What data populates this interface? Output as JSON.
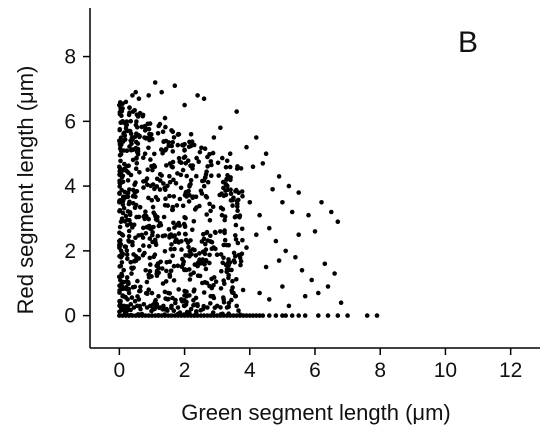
{
  "chart_data": {
    "type": "scatter",
    "panel_label": "B",
    "xlabel": "Green segment length (μm)",
    "ylabel": "Red segment length (μm)",
    "xlim": [
      -0.9,
      12.9
    ],
    "ylim": [
      -1.0,
      9.5
    ],
    "xticks": [
      0,
      2,
      4,
      6,
      8,
      10,
      12
    ],
    "yticks": [
      0,
      2,
      4,
      6,
      8
    ],
    "grid": false,
    "legend": "none",
    "marker_color": "#000000",
    "series": [
      {
        "points": [
          [
            0.0,
            6.5
          ],
          [
            0.1,
            6.4
          ],
          [
            0.2,
            6.6
          ],
          [
            0.5,
            6.9
          ],
          [
            0.6,
            6.7
          ],
          [
            0.4,
            6.8
          ],
          [
            0.9,
            6.8
          ],
          [
            1.1,
            7.2
          ],
          [
            1.7,
            7.1
          ],
          [
            2.4,
            6.8
          ],
          [
            2.6,
            6.7
          ],
          [
            3.6,
            6.3
          ],
          [
            1.3,
            6.9
          ],
          [
            0.1,
            6.0
          ],
          [
            0.3,
            6.2
          ],
          [
            2.0,
            6.5
          ],
          [
            0.2,
            5.9
          ],
          [
            0.8,
            5.8
          ],
          [
            1.4,
            6.1
          ],
          [
            2.2,
            5.6
          ],
          [
            3.1,
            5.8
          ],
          [
            2.9,
            5.5
          ],
          [
            3.9,
            5.2
          ],
          [
            4.2,
            5.5
          ],
          [
            4.5,
            5.0
          ],
          [
            3.4,
            5.0
          ],
          [
            2.7,
            4.9
          ],
          [
            4.1,
            4.6
          ],
          [
            4.4,
            4.7
          ],
          [
            4.9,
            4.3
          ],
          [
            5.2,
            4.0
          ],
          [
            5.5,
            3.8
          ],
          [
            4.7,
            3.9
          ],
          [
            5.0,
            3.5
          ],
          [
            5.3,
            3.2
          ],
          [
            5.8,
            3.1
          ],
          [
            6.0,
            2.6
          ],
          [
            6.2,
            3.5
          ],
          [
            6.5,
            3.2
          ],
          [
            6.7,
            2.9
          ],
          [
            4.3,
            3.1
          ],
          [
            4.6,
            2.7
          ],
          [
            4.8,
            2.3
          ],
          [
            5.1,
            2.0
          ],
          [
            5.4,
            1.8
          ],
          [
            5.6,
            1.4
          ],
          [
            5.9,
            1.1
          ],
          [
            6.3,
            1.6
          ],
          [
            6.6,
            1.3
          ],
          [
            6.1,
            0.7
          ],
          [
            6.8,
            0.4
          ],
          [
            6.4,
            0.9
          ],
          [
            5.7,
            0.6
          ],
          [
            5.0,
            0.9
          ],
          [
            4.5,
            1.5
          ],
          [
            4.9,
            1.7
          ],
          [
            4.2,
            2.5
          ],
          [
            4.0,
            3.5
          ],
          [
            3.9,
            2.1
          ],
          [
            4.3,
            0.7
          ],
          [
            4.6,
            0.5
          ],
          [
            5.2,
            0.3
          ],
          [
            5.5,
            2.5
          ],
          [
            0.0,
            0.0
          ],
          [
            0.1,
            0.0
          ],
          [
            0.2,
            0.0
          ],
          [
            0.3,
            0.0
          ],
          [
            0.4,
            0.0
          ],
          [
            0.5,
            0.0
          ],
          [
            0.6,
            0.0
          ],
          [
            0.7,
            0.0
          ],
          [
            0.8,
            0.0
          ],
          [
            0.9,
            0.0
          ],
          [
            1.0,
            0.0
          ],
          [
            1.1,
            0.0
          ],
          [
            1.2,
            0.0
          ],
          [
            1.3,
            0.0
          ],
          [
            1.4,
            0.0
          ],
          [
            1.5,
            0.0
          ],
          [
            1.6,
            0.0
          ],
          [
            1.7,
            0.0
          ],
          [
            1.8,
            0.0
          ],
          [
            1.9,
            0.0
          ],
          [
            2.0,
            0.0
          ],
          [
            2.1,
            0.0
          ],
          [
            2.2,
            0.0
          ],
          [
            2.3,
            0.0
          ],
          [
            2.4,
            0.0
          ],
          [
            2.5,
            0.0
          ],
          [
            2.6,
            0.0
          ],
          [
            2.7,
            0.0
          ],
          [
            2.8,
            0.0
          ],
          [
            2.9,
            0.0
          ],
          [
            3.0,
            0.0
          ],
          [
            3.1,
            0.0
          ],
          [
            3.2,
            0.0
          ],
          [
            3.3,
            0.0
          ],
          [
            3.4,
            0.0
          ],
          [
            3.5,
            0.0
          ],
          [
            3.6,
            0.0
          ],
          [
            3.7,
            0.0
          ],
          [
            3.8,
            0.0
          ],
          [
            3.9,
            0.0
          ],
          [
            4.0,
            0.0
          ],
          [
            4.1,
            0.0
          ],
          [
            4.2,
            0.0
          ],
          [
            4.3,
            0.0
          ],
          [
            4.4,
            0.0
          ],
          [
            4.6,
            0.0
          ],
          [
            4.8,
            0.0
          ],
          [
            5.0,
            0.0
          ],
          [
            5.1,
            0.0
          ],
          [
            5.3,
            0.0
          ],
          [
            5.5,
            0.0
          ],
          [
            5.7,
            0.0
          ],
          [
            6.1,
            0.0
          ],
          [
            6.4,
            0.0
          ],
          [
            6.7,
            0.0
          ],
          [
            7.0,
            0.0
          ],
          [
            7.6,
            0.0
          ],
          [
            7.9,
            0.0
          ],
          [
            0.05,
            0.25
          ],
          [
            0.15,
            0.3
          ],
          [
            0.25,
            0.2
          ],
          [
            0.35,
            0.35
          ],
          [
            0.45,
            0.25
          ],
          [
            0.55,
            0.3
          ],
          [
            0.65,
            0.2
          ],
          [
            0.75,
            0.35
          ],
          [
            0.85,
            0.25
          ],
          [
            0.95,
            0.3
          ],
          [
            1.05,
            0.2
          ],
          [
            1.15,
            0.35
          ],
          [
            1.25,
            0.25
          ],
          [
            1.35,
            0.3
          ],
          [
            1.45,
            0.2
          ],
          [
            1.6,
            0.3
          ],
          [
            1.8,
            0.25
          ],
          [
            2.0,
            0.3
          ],
          [
            2.2,
            0.2
          ],
          [
            2.4,
            0.3
          ],
          [
            2.7,
            0.25
          ],
          [
            3.0,
            0.3
          ],
          [
            3.3,
            0.25
          ],
          [
            3.6,
            0.3
          ],
          [
            0.1,
            0.6
          ],
          [
            0.3,
            0.7
          ],
          [
            0.6,
            0.5
          ],
          [
            0.9,
            0.8
          ],
          [
            1.2,
            0.6
          ],
          [
            1.5,
            0.7
          ],
          [
            1.9,
            0.5
          ],
          [
            2.3,
            0.8
          ],
          [
            2.8,
            0.6
          ],
          [
            3.2,
            0.5
          ],
          [
            3.5,
            0.7
          ],
          [
            0.0,
            1.2
          ],
          [
            0.0,
            2.3
          ],
          [
            0.0,
            3.5
          ],
          [
            0.0,
            4.6
          ],
          [
            0.0,
            5.4
          ],
          [
            0.05,
            1.8
          ],
          [
            0.05,
            2.9
          ],
          [
            0.05,
            4.1
          ],
          [
            0.05,
            5.1
          ]
        ]
      }
    ]
  }
}
